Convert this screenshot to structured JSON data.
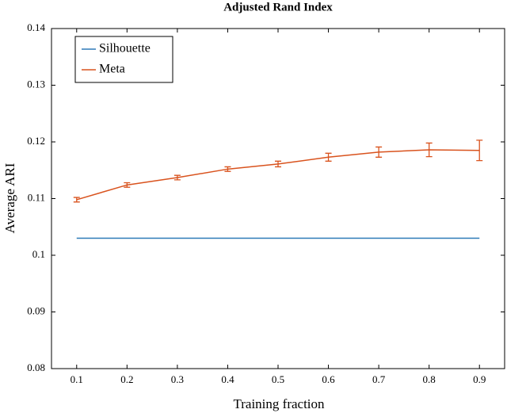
{
  "chart_data": {
    "type": "line",
    "title": "Adjusted Rand Index",
    "x_label": "Training fraction",
    "y_label": "Average ARI",
    "x": [
      0.1,
      0.2,
      0.3,
      0.4,
      0.5,
      0.6,
      0.7,
      0.8,
      0.9
    ],
    "series": [
      {
        "name": "Silhouette",
        "color": "#2e7ab8",
        "values": [
          0.103,
          0.103,
          0.103,
          0.103,
          0.103,
          0.103,
          0.103,
          0.103,
          0.103
        ]
      },
      {
        "name": "Meta",
        "color": "#d9531e",
        "values": [
          0.1098,
          0.1124,
          0.1137,
          0.1152,
          0.1161,
          0.1173,
          0.1182,
          0.1186,
          0.1185
        ],
        "errors": [
          0.0004,
          0.0004,
          0.0004,
          0.0004,
          0.0005,
          0.0007,
          0.0009,
          0.0012,
          0.0018
        ]
      }
    ],
    "xlim": [
      0.05,
      0.95
    ],
    "xticks": [
      0.1,
      0.2,
      0.3,
      0.4,
      0.5,
      0.6,
      0.7,
      0.8,
      0.9
    ],
    "ylim": [
      0.08,
      0.14
    ],
    "yticks": [
      0.08,
      0.09,
      0.1,
      0.11,
      0.12,
      0.13,
      0.14
    ],
    "legend": "upper-left"
  }
}
